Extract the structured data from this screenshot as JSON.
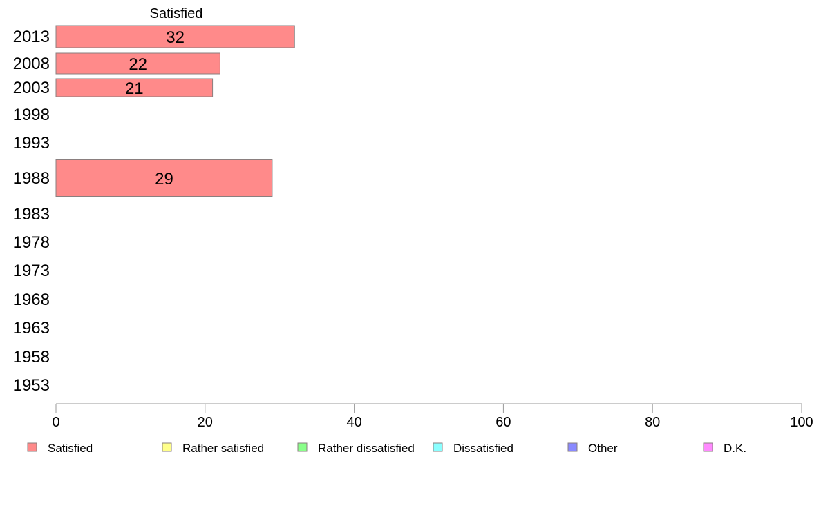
{
  "chart_data": {
    "type": "bar",
    "orientation": "horizontal",
    "header": "Satisfied",
    "categories": [
      "2013",
      "2008",
      "2003",
      "1998",
      "1993",
      "1988",
      "1983",
      "1978",
      "1973",
      "1968",
      "1963",
      "1958",
      "1953"
    ],
    "series": [
      {
        "name": "Satisfied",
        "color": "#ff8a8a",
        "values": [
          32,
          22,
          21,
          null,
          null,
          29,
          null,
          null,
          null,
          null,
          null,
          null,
          null
        ]
      },
      {
        "name": "Rather satisfied",
        "color": "#ffff8a",
        "values": [
          null,
          null,
          null,
          null,
          null,
          null,
          null,
          null,
          null,
          null,
          null,
          null,
          null
        ]
      },
      {
        "name": "Rather dissatisfied",
        "color": "#8aff8a",
        "values": [
          null,
          null,
          null,
          null,
          null,
          null,
          null,
          null,
          null,
          null,
          null,
          null,
          null
        ]
      },
      {
        "name": "Dissatisfied",
        "color": "#8affff",
        "values": [
          null,
          null,
          null,
          null,
          null,
          null,
          null,
          null,
          null,
          null,
          null,
          null,
          null
        ]
      },
      {
        "name": "Other",
        "color": "#8a8aff",
        "values": [
          null,
          null,
          null,
          null,
          null,
          null,
          null,
          null,
          null,
          null,
          null,
          null,
          null
        ]
      },
      {
        "name": "D.K.",
        "color": "#ff8aff",
        "values": [
          null,
          null,
          null,
          null,
          null,
          null,
          null,
          null,
          null,
          null,
          null,
          null,
          null
        ]
      }
    ],
    "bar_labels": [
      "32",
      "22",
      "21",
      "",
      "",
      "29",
      "",
      "",
      "",
      "",
      "",
      "",
      ""
    ],
    "xlim": [
      0,
      100
    ],
    "xticks": [
      "0",
      "20",
      "40",
      "60",
      "80",
      "100"
    ],
    "xlabel": "",
    "ylabel": "",
    "grid": false,
    "legend_position": "bottom"
  }
}
